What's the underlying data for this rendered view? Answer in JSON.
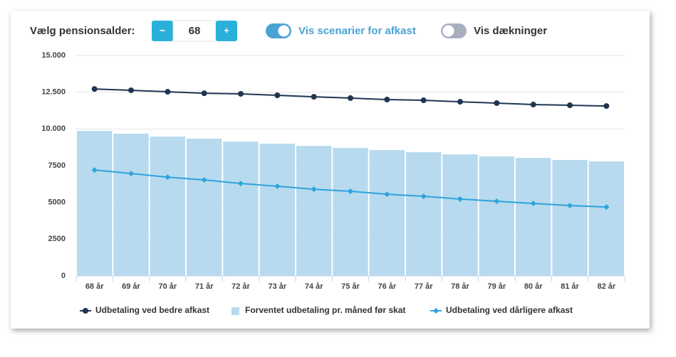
{
  "controls": {
    "age_label": "Vælg pensionsalder:",
    "minus": "−",
    "age_value": "68",
    "plus": "+",
    "toggle_scenarios": "Vis scenarier for afkast",
    "toggle_coverage": "Vis dækninger"
  },
  "chart_data": {
    "type": "bar",
    "categories": [
      "68 år",
      "69 år",
      "70 år",
      "71 år",
      "72 år",
      "73 år",
      "74 år",
      "75 år",
      "76 år",
      "77 år",
      "78 år",
      "79 år",
      "80 år",
      "81 år",
      "82 år"
    ],
    "series": [
      {
        "name": "Udbetaling ved bedre afkast",
        "type": "line",
        "marker": "circle",
        "color": "#1f3550",
        "values": [
          12720,
          12630,
          12530,
          12430,
          12390,
          12290,
          12190,
          12100,
          12000,
          11950,
          11850,
          11760,
          11660,
          11610,
          11560
        ]
      },
      {
        "name": "Forventet udbetaling pr. måned før skat",
        "type": "bar",
        "color": "#b7daee",
        "values": [
          9870,
          9680,
          9480,
          9340,
          9140,
          9000,
          8850,
          8710,
          8560,
          8420,
          8270,
          8130,
          8030,
          7890,
          7790
        ]
      },
      {
        "name": "Udbetaling ved dårligere afkast",
        "type": "line",
        "marker": "diamond",
        "color": "#2ea3dc",
        "values": [
          7210,
          6970,
          6720,
          6530,
          6290,
          6100,
          5900,
          5760,
          5560,
          5420,
          5230,
          5080,
          4930,
          4790,
          4690
        ]
      }
    ],
    "ylim": [
      0,
      15000
    ],
    "yticks": [
      0,
      2500,
      5000,
      7500,
      {
        "value": 10000,
        "label": "10.000"
      },
      {
        "value": 12500,
        "label": "12.500"
      },
      {
        "value": 15000,
        "label": "15.000"
      }
    ],
    "grid": true,
    "legend": "bottom"
  }
}
